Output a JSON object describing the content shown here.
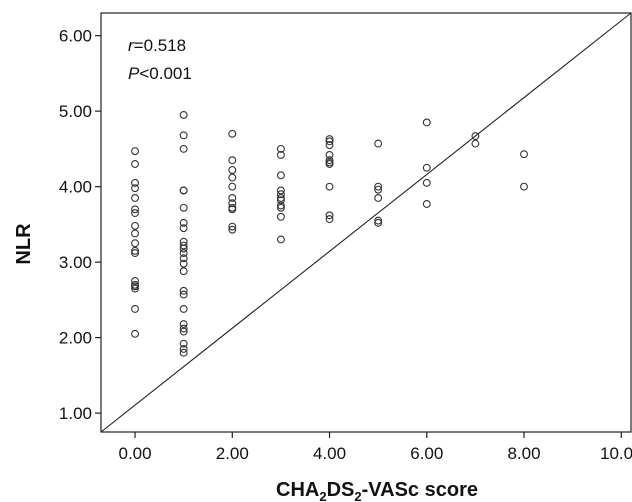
{
  "chart_data": {
    "type": "scatter",
    "xlabel": {
      "main": "CHA",
      "sub1": "2",
      "mid": "DS",
      "sub2": "2",
      "tail": "-VASc score"
    },
    "ylabel": "NLR",
    "xlim": [
      -0.7,
      10.2
    ],
    "ylim": [
      0.75,
      6.3
    ],
    "xticks": [
      "0.00",
      "2.00",
      "4.00",
      "6.00",
      "8.00",
      "10.00"
    ],
    "yticks": [
      "1.00",
      "2.00",
      "3.00",
      "4.00",
      "5.00",
      "6.00"
    ],
    "annotation": {
      "r_label": "r",
      "r_value": "=0.518",
      "p_label": "P",
      "p_value": "<0.001"
    },
    "reference_line": {
      "from": [
        -0.7,
        0.75
      ],
      "to": [
        10.2,
        6.3
      ]
    },
    "series": [
      {
        "points": [
          [
            0,
            4.47
          ],
          [
            0,
            4.3
          ],
          [
            0,
            4.05
          ],
          [
            0,
            3.98
          ],
          [
            0,
            3.85
          ],
          [
            0,
            3.7
          ],
          [
            0,
            3.65
          ],
          [
            0,
            3.48
          ],
          [
            0,
            3.38
          ],
          [
            0,
            3.25
          ],
          [
            0,
            3.15
          ],
          [
            0,
            3.12
          ],
          [
            0,
            2.75
          ],
          [
            0,
            2.7
          ],
          [
            0,
            2.68
          ],
          [
            0,
            2.65
          ],
          [
            0,
            2.38
          ],
          [
            0,
            2.05
          ],
          [
            1,
            4.95
          ],
          [
            1,
            4.68
          ],
          [
            1,
            4.5
          ],
          [
            1,
            3.95
          ],
          [
            1,
            3.95
          ],
          [
            1,
            3.72
          ],
          [
            1,
            3.52
          ],
          [
            1,
            3.45
          ],
          [
            1,
            3.27
          ],
          [
            1,
            3.22
          ],
          [
            1,
            3.18
          ],
          [
            1,
            3.12
          ],
          [
            1,
            3.05
          ],
          [
            1,
            2.98
          ],
          [
            1,
            2.88
          ],
          [
            1,
            2.62
          ],
          [
            1,
            2.57
          ],
          [
            1,
            2.38
          ],
          [
            1,
            2.18
          ],
          [
            1,
            2.12
          ],
          [
            1,
            2.08
          ],
          [
            1,
            1.92
          ],
          [
            1,
            1.85
          ],
          [
            1,
            1.8
          ],
          [
            2,
            4.7
          ],
          [
            2,
            4.35
          ],
          [
            2,
            4.22
          ],
          [
            2,
            4.12
          ],
          [
            2,
            4.0
          ],
          [
            2,
            3.85
          ],
          [
            2,
            3.78
          ],
          [
            2,
            3.72
          ],
          [
            2,
            3.7
          ],
          [
            2,
            3.47
          ],
          [
            2,
            3.43
          ],
          [
            3,
            4.5
          ],
          [
            3,
            4.42
          ],
          [
            3,
            4.15
          ],
          [
            3,
            3.95
          ],
          [
            3,
            3.9
          ],
          [
            3,
            3.85
          ],
          [
            3,
            3.82
          ],
          [
            3,
            3.75
          ],
          [
            3,
            3.72
          ],
          [
            3,
            3.6
          ],
          [
            3,
            3.3
          ],
          [
            4,
            4.63
          ],
          [
            4,
            4.6
          ],
          [
            4,
            4.55
          ],
          [
            4,
            4.42
          ],
          [
            4,
            4.35
          ],
          [
            4,
            4.32
          ],
          [
            4,
            4.3
          ],
          [
            4,
            4.0
          ],
          [
            4,
            3.62
          ],
          [
            4,
            3.57
          ],
          [
            5,
            4.57
          ],
          [
            5,
            4.0
          ],
          [
            5,
            3.96
          ],
          [
            5,
            3.85
          ],
          [
            5,
            3.55
          ],
          [
            5,
            3.52
          ],
          [
            6,
            4.85
          ],
          [
            6,
            4.25
          ],
          [
            6,
            4.05
          ],
          [
            6,
            3.77
          ],
          [
            7,
            4.67
          ],
          [
            7,
            4.57
          ],
          [
            8,
            4.43
          ],
          [
            8,
            4.0
          ]
        ]
      }
    ]
  }
}
